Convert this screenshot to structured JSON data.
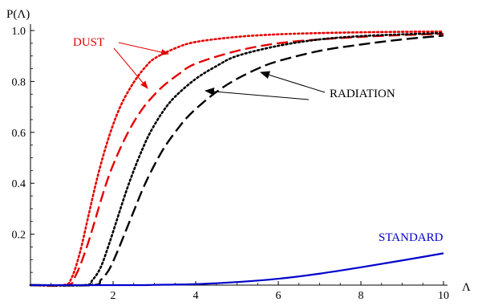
{
  "chart_data": {
    "type": "line",
    "title": "",
    "xlabel": "Λ",
    "ylabel": "P(Λ)",
    "xlim": [
      0,
      10
    ],
    "ylim": [
      0,
      1.0
    ],
    "x_ticks": [
      2,
      4,
      6,
      8,
      10
    ],
    "y_ticks": [
      0.2,
      0.4,
      0.6,
      0.8,
      1.0
    ],
    "x_tick_labels": [
      "2",
      "4",
      "6",
      "8",
      "10"
    ],
    "y_tick_labels": [
      "0.2",
      "0.4",
      "0.6",
      "0.8",
      "1.0"
    ],
    "grid": false,
    "legend": "none",
    "series": [
      {
        "color": "#e60000",
        "style": "dotted",
        "x": [
          0,
          0.8,
          1.0,
          1.2,
          1.4,
          1.6,
          1.8,
          2.0,
          2.2,
          2.4,
          2.6,
          2.8,
          3.0,
          3.5,
          4.0,
          5.0,
          6.0,
          7.0,
          8.0,
          9.0,
          10.0
        ],
        "y": [
          0,
          0.0,
          0.03,
          0.13,
          0.27,
          0.41,
          0.53,
          0.63,
          0.71,
          0.77,
          0.82,
          0.86,
          0.89,
          0.93,
          0.955,
          0.975,
          0.985,
          0.99,
          0.993,
          0.995,
          0.996
        ]
      },
      {
        "color": "#e60000",
        "style": "dashed",
        "x": [
          0,
          0.9,
          1.1,
          1.3,
          1.5,
          1.7,
          1.9,
          2.1,
          2.3,
          2.5,
          2.7,
          2.9,
          3.2,
          3.6,
          4.0,
          5.0,
          6.0,
          7.0,
          8.0,
          9.0,
          10.0
        ],
        "y": [
          0,
          0.0,
          0.04,
          0.12,
          0.22,
          0.33,
          0.43,
          0.51,
          0.58,
          0.64,
          0.69,
          0.73,
          0.78,
          0.83,
          0.87,
          0.92,
          0.95,
          0.965,
          0.975,
          0.982,
          0.987
        ]
      },
      {
        "color": "#000000",
        "style": "dotted",
        "x": [
          0,
          1.3,
          1.5,
          1.7,
          1.9,
          2.1,
          2.3,
          2.5,
          2.7,
          2.9,
          3.2,
          3.5,
          4.0,
          4.5,
          5.0,
          6.0,
          7.0,
          8.0,
          9.0,
          10.0
        ],
        "y": [
          0,
          0.0,
          0.02,
          0.07,
          0.16,
          0.26,
          0.36,
          0.45,
          0.53,
          0.6,
          0.68,
          0.74,
          0.81,
          0.86,
          0.9,
          0.94,
          0.965,
          0.978,
          0.985,
          0.99
        ]
      },
      {
        "color": "#000000",
        "style": "dashed",
        "x": [
          0,
          1.5,
          1.7,
          1.9,
          2.1,
          2.3,
          2.5,
          2.7,
          2.9,
          3.2,
          3.5,
          3.8,
          4.2,
          4.6,
          5.0,
          5.5,
          6.0,
          7.0,
          8.0,
          9.0,
          10.0
        ],
        "y": [
          0,
          0.0,
          0.02,
          0.06,
          0.13,
          0.21,
          0.29,
          0.37,
          0.44,
          0.53,
          0.6,
          0.66,
          0.72,
          0.77,
          0.81,
          0.85,
          0.88,
          0.92,
          0.945,
          0.965,
          0.98
        ]
      },
      {
        "color": "#0000cc",
        "style": "solid",
        "x": [
          0,
          2.5,
          3.0,
          4.0,
          5.0,
          6.0,
          7.0,
          8.0,
          9.0,
          10.0
        ],
        "y": [
          0,
          0.0,
          0.001,
          0.004,
          0.012,
          0.025,
          0.045,
          0.07,
          0.097,
          0.125
        ]
      }
    ],
    "annotations": [
      {
        "text": "DUST",
        "color": "#e60000"
      },
      {
        "text": "RADIATION",
        "color": "#000000"
      },
      {
        "text": "STANDARD",
        "color": "#0000cc"
      }
    ]
  }
}
